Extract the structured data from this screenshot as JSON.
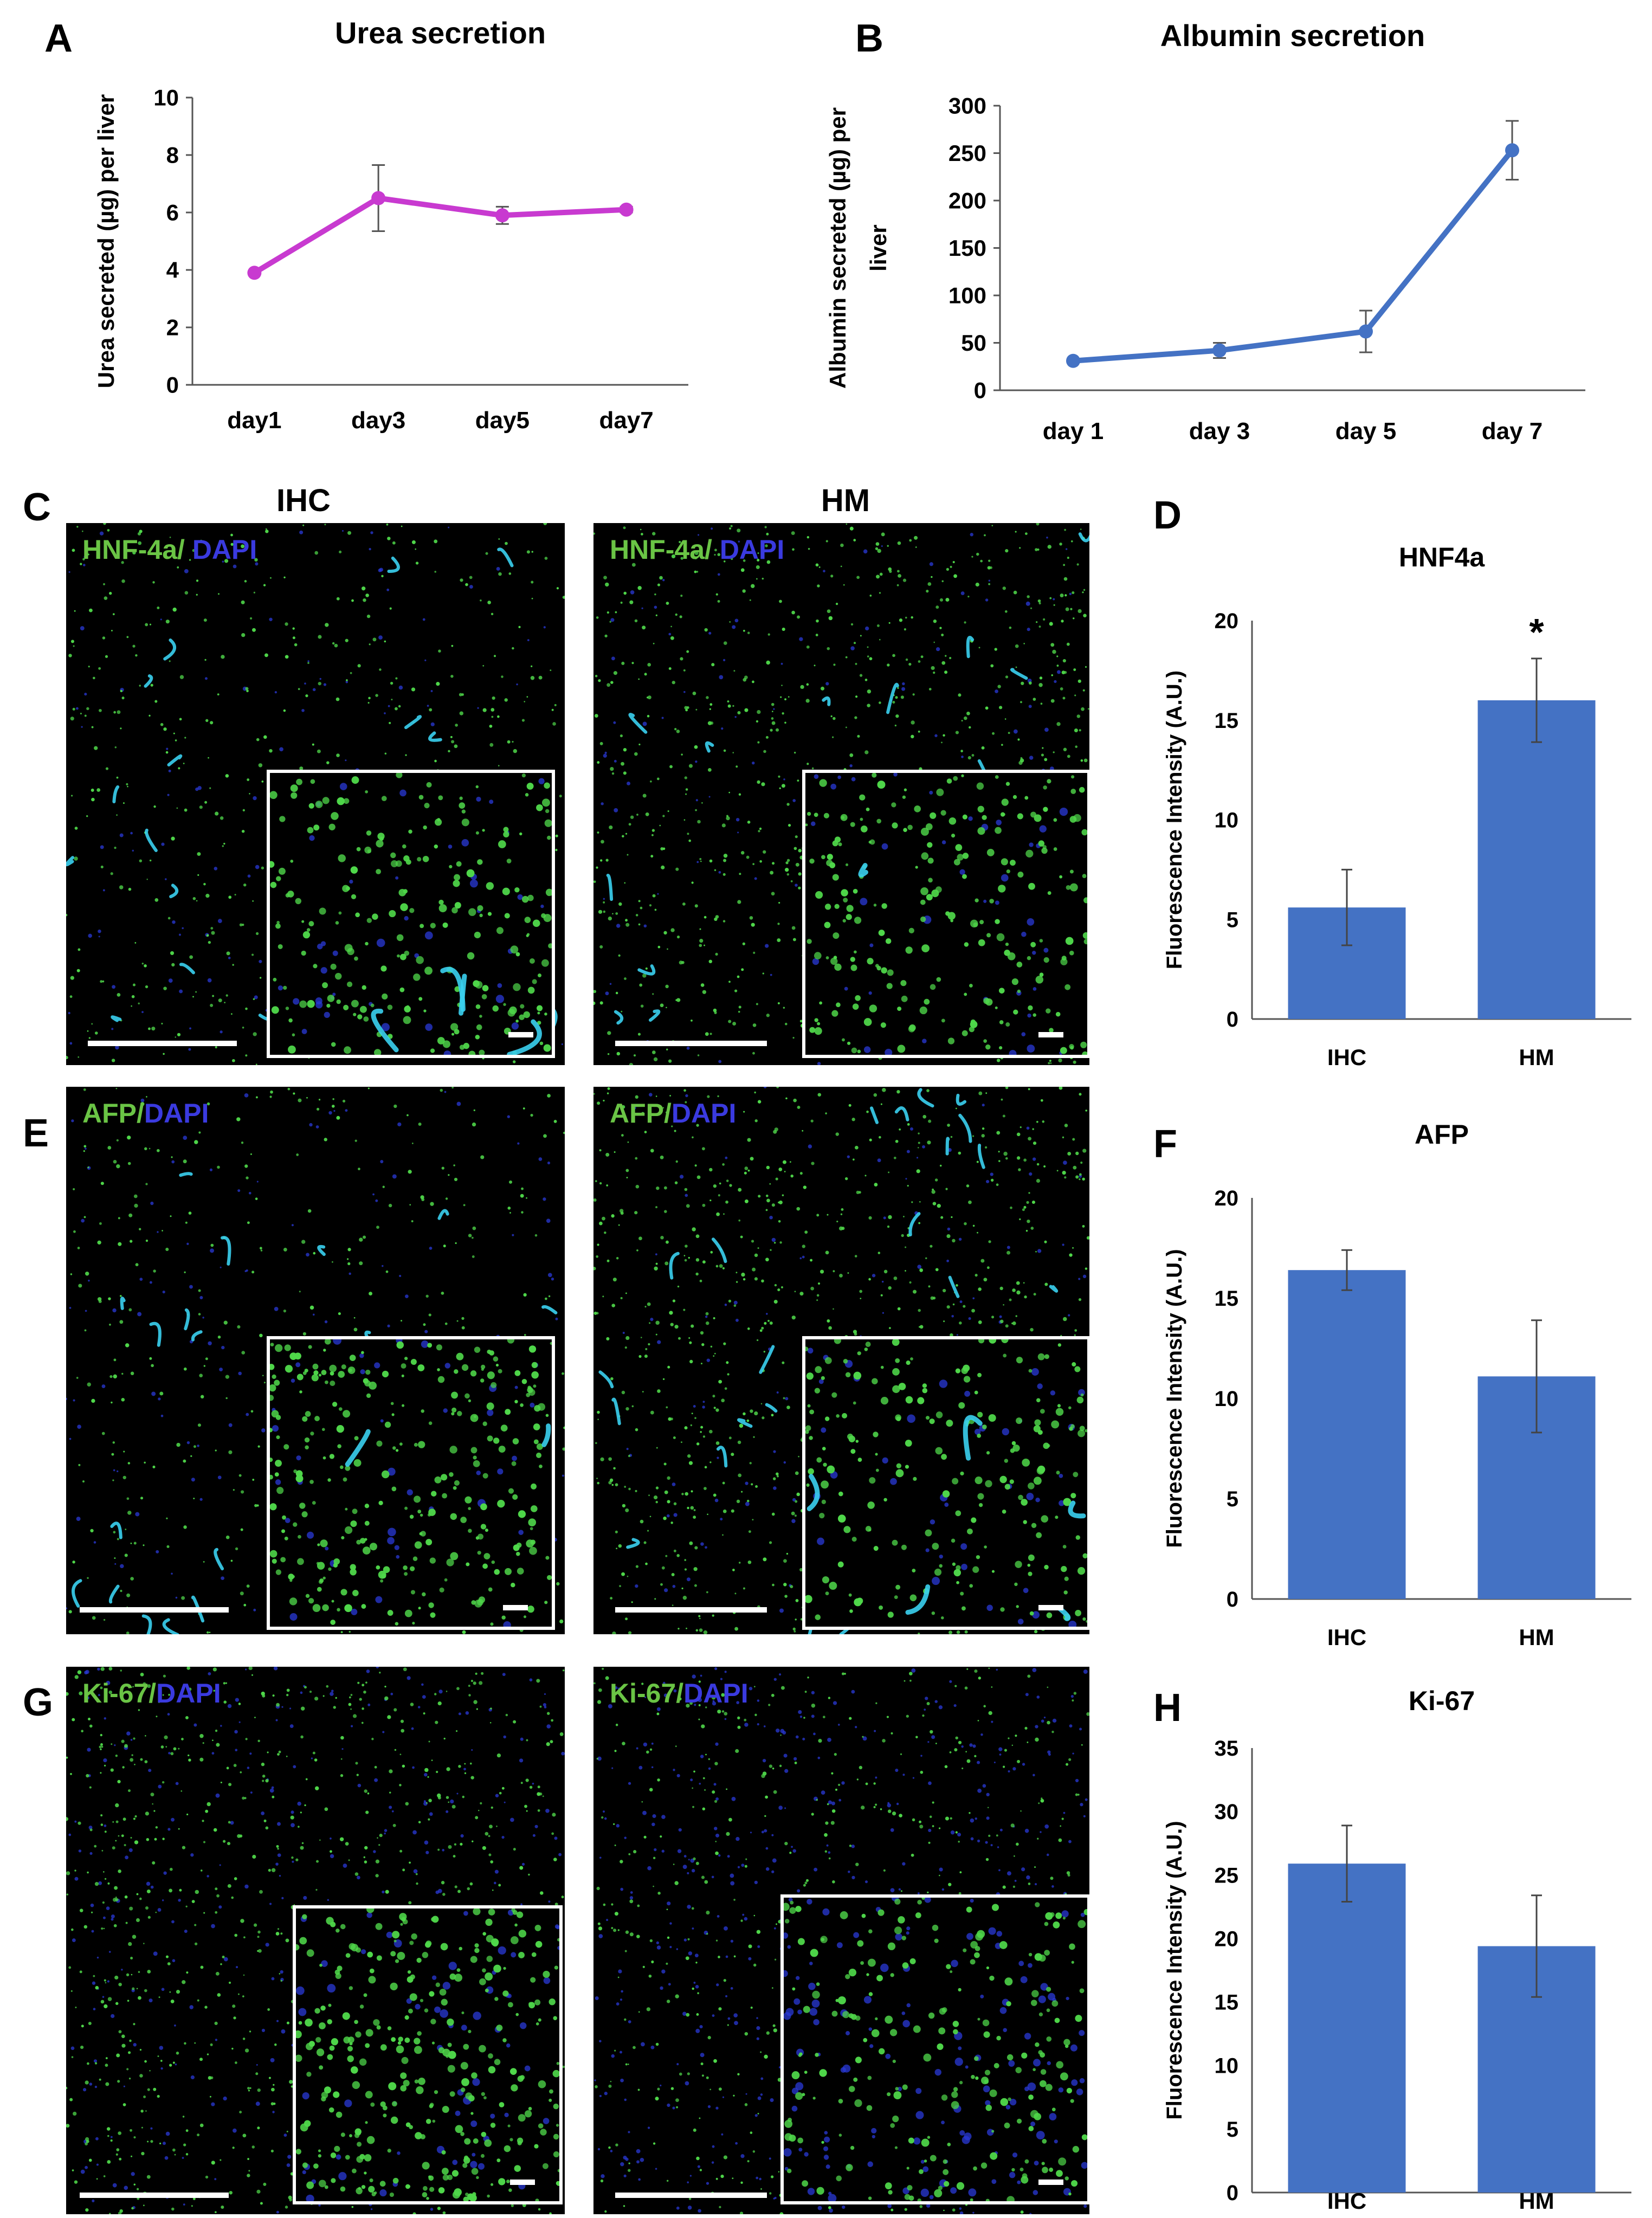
{
  "panels": {
    "A": "A",
    "B": "B",
    "C": "C",
    "D": "D",
    "E": "E",
    "F": "F",
    "G": "G",
    "H": "H"
  },
  "column_titles": {
    "ihc": "IHC",
    "hm": "HM"
  },
  "stains": {
    "hnf": {
      "marker": "HNF-4a/",
      "dapi": " DAPI"
    },
    "afp": {
      "marker": "AFP/",
      "dapi": "DAPI"
    },
    "ki67": {
      "marker": "Ki-67/",
      "dapi": "DAPI"
    }
  },
  "colors": {
    "green_stain": "#6ac445",
    "blue_stain": "#3a3adf",
    "cyan_stain": "#3ad0f0",
    "bar_blue": "#4472c4",
    "urea_line": "#c83ad0",
    "albumin_line": "#4472c4"
  },
  "chart_data": [
    {
      "id": "urea",
      "type": "line",
      "title": "Urea secretion",
      "xlabel": "",
      "ylabel": "Urea secreted (µg) per liver",
      "categories": [
        "day1",
        "day3",
        "day5",
        "day7"
      ],
      "values": [
        3.9,
        6.5,
        5.9,
        6.1
      ],
      "errors": [
        0.0,
        1.15,
        0.3,
        0.1
      ],
      "ylim": [
        0,
        10
      ],
      "yticks": [
        "0",
        "2",
        "4",
        "6",
        "8",
        "10"
      ],
      "color": "#c83ad0"
    },
    {
      "id": "albumin",
      "type": "line",
      "title": "Albumin secretion",
      "xlabel": "",
      "ylabel": "Albumin secreted (µg) per liver",
      "categories": [
        "day 1",
        "day 3",
        "day 5",
        "day 7"
      ],
      "values": [
        31,
        42,
        62,
        253
      ],
      "errors": [
        0,
        8,
        22,
        31
      ],
      "ylim": [
        0,
        300
      ],
      "yticks": [
        "0",
        "50",
        "100",
        "150",
        "200",
        "250",
        "300"
      ],
      "color": "#4472c4"
    },
    {
      "id": "hnf4a",
      "type": "bar",
      "title": "HNF4a",
      "xlabel": "",
      "ylabel": "Fluorescence Intensity (A.U.)",
      "categories": [
        "IHC",
        "HM"
      ],
      "values": [
        5.6,
        16.0
      ],
      "errors": [
        1.9,
        2.1
      ],
      "ylim": [
        0,
        20
      ],
      "yticks": [
        "0",
        "5",
        "10",
        "15",
        "20"
      ],
      "annotation": "*",
      "color": "#4472c4"
    },
    {
      "id": "afp",
      "type": "bar",
      "title": "AFP",
      "xlabel": "",
      "ylabel": "Fluorescence Intensity (A.U.)",
      "categories": [
        "IHC",
        "HM"
      ],
      "values": [
        16.4,
        11.1
      ],
      "errors": [
        1.0,
        2.8
      ],
      "ylim": [
        0,
        20
      ],
      "yticks": [
        "0",
        "5",
        "10",
        "15",
        "20"
      ],
      "color": "#4472c4"
    },
    {
      "id": "ki67",
      "type": "bar",
      "title": "Ki-67",
      "xlabel": "",
      "ylabel": "Fluorescence Intensity (A.U.)",
      "categories": [
        "IHC",
        "HM"
      ],
      "values": [
        25.9,
        19.4
      ],
      "errors": [
        3.0,
        4.0
      ],
      "ylim": [
        0,
        35
      ],
      "yticks": [
        "0",
        "5",
        "10",
        "15",
        "20",
        "25",
        "30",
        "35"
      ],
      "color": "#4472c4"
    }
  ]
}
